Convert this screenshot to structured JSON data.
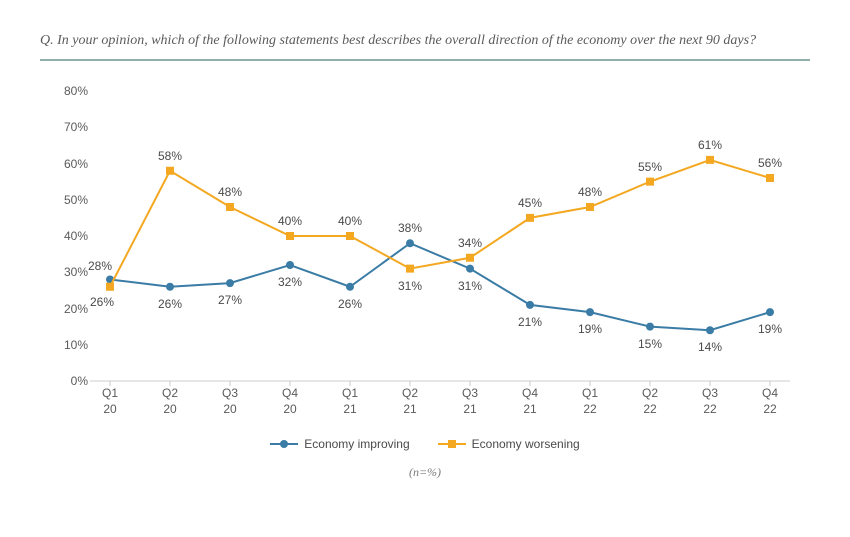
{
  "question": "Q. In your opinion, which of the following statements best describes the overall direction of the economy over the next 90 days?",
  "n_note": "(n=%)",
  "chart": {
    "type": "line",
    "background_color": "#ffffff",
    "divider_color": "#8fafa8",
    "text_color": "#5a5a5a",
    "label_fontsize": 12,
    "question_fontsize": 14,
    "ylim": [
      0,
      80
    ],
    "ytick_step": 10,
    "ytick_suffix": "%",
    "categories": [
      "Q1\n20",
      "Q2\n20",
      "Q3\n20",
      "Q4\n20",
      "Q1\n21",
      "Q2\n21",
      "Q3\n21",
      "Q4\n21",
      "Q1\n22",
      "Q2\n22",
      "Q3\n22",
      "Q4\n22"
    ],
    "grid_color": "#cccccc",
    "x_axis_line": true,
    "series": [
      {
        "name": "Economy improving",
        "color": "#3a7ca5",
        "marker": "circle",
        "line_width": 2,
        "marker_size": 8,
        "values": [
          28,
          26,
          27,
          32,
          26,
          38,
          31,
          21,
          19,
          15,
          14,
          19
        ],
        "label_offsets": [
          [
            -10,
            -14
          ],
          [
            0,
            17
          ],
          [
            0,
            17
          ],
          [
            0,
            17
          ],
          [
            0,
            17
          ],
          [
            0,
            -15
          ],
          [
            0,
            17
          ],
          [
            0,
            17
          ],
          [
            0,
            17
          ],
          [
            0,
            17
          ],
          [
            0,
            17
          ],
          [
            0,
            17
          ]
        ]
      },
      {
        "name": "Economy worsening",
        "color": "#f4a821",
        "marker": "square",
        "line_width": 2,
        "marker_size": 8,
        "values": [
          26,
          58,
          48,
          40,
          40,
          31,
          34,
          45,
          48,
          55,
          61,
          56
        ],
        "label_offsets": [
          [
            -8,
            15
          ],
          [
            0,
            -15
          ],
          [
            0,
            -15
          ],
          [
            0,
            -15
          ],
          [
            0,
            -15
          ],
          [
            0,
            17
          ],
          [
            0,
            -15
          ],
          [
            0,
            -15
          ],
          [
            0,
            -15
          ],
          [
            0,
            -15
          ],
          [
            0,
            -15
          ],
          [
            0,
            -15
          ]
        ]
      }
    ],
    "legend": {
      "position": "bottom",
      "items": [
        "Economy improving",
        "Economy worsening"
      ]
    }
  }
}
